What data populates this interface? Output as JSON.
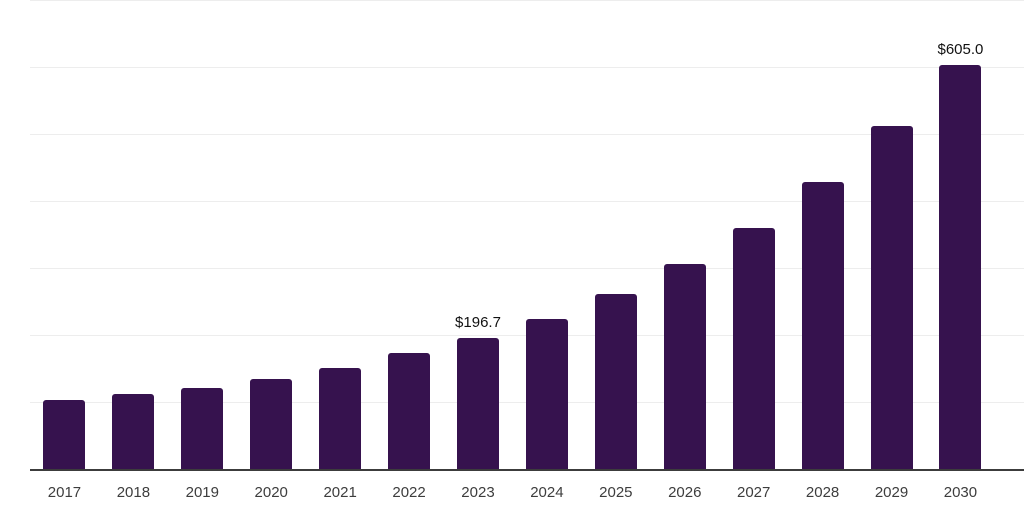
{
  "chart_data": {
    "type": "bar",
    "categories": [
      "2017",
      "2018",
      "2019",
      "2020",
      "2021",
      "2022",
      "2023",
      "2024",
      "2025",
      "2026",
      "2027",
      "2028",
      "2029",
      "2030"
    ],
    "values": [
      104,
      113,
      122,
      136,
      152,
      174,
      196.7,
      226,
      262,
      308,
      361,
      430,
      513,
      605
    ],
    "data_labels": [
      "",
      "",
      "",
      "",
      "",
      "",
      "$196.7",
      "",
      "",
      "",
      "",
      "",
      "",
      "$605.0"
    ],
    "ylim": [
      0,
      700
    ],
    "gridline_step": 100,
    "grid": "horizontal-only",
    "legend": "none",
    "y_axis_tick_labels_visible": false,
    "colors": {
      "bar": "#36124E",
      "gridline": "#EDEDED",
      "axis_line": "#3C3C3C",
      "tick_label": "#3D3D3D",
      "data_label": "#111111",
      "background": "#FFFFFF"
    }
  }
}
